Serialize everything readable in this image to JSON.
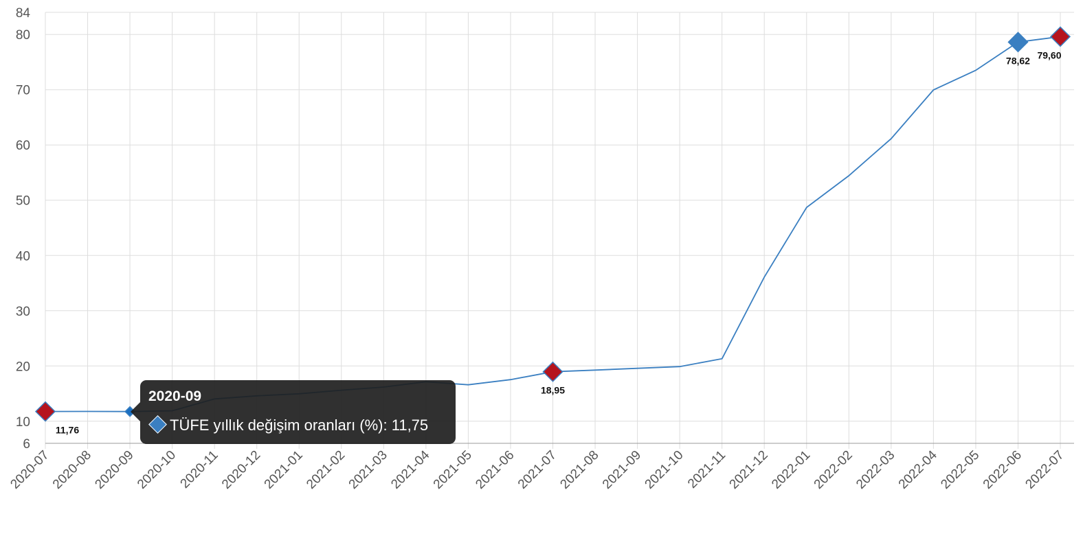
{
  "chart_data": {
    "type": "line",
    "title": "",
    "xlabel": "",
    "ylabel": "",
    "ylim": [
      6,
      84
    ],
    "yticks": [
      6,
      10,
      20,
      30,
      40,
      50,
      60,
      70,
      80,
      84
    ],
    "grid": true,
    "categories": [
      "2020-07",
      "2020-08",
      "2020-09",
      "2020-10",
      "2020-11",
      "2020-12",
      "2021-01",
      "2021-02",
      "2021-03",
      "2021-04",
      "2021-05",
      "2021-06",
      "2021-07",
      "2021-08",
      "2021-09",
      "2021-10",
      "2021-11",
      "2021-12",
      "2022-01",
      "2022-02",
      "2022-03",
      "2022-04",
      "2022-05",
      "2022-06",
      "2022-07"
    ],
    "series": [
      {
        "name": "TÜFE yıllık değişim oranları (%)",
        "color": "#3a7fc1",
        "values": [
          11.76,
          11.77,
          11.75,
          11.89,
          14.03,
          14.6,
          14.97,
          15.61,
          16.19,
          17.14,
          16.59,
          17.53,
          18.95,
          19.25,
          19.58,
          19.89,
          21.31,
          36.08,
          48.69,
          54.44,
          61.14,
          69.97,
          73.5,
          78.62,
          79.6
        ]
      }
    ],
    "highlighted_points": [
      {
        "category": "2020-07",
        "label": "11,76",
        "marker": "diamond",
        "color": "#b5141e"
      },
      {
        "category": "2021-07",
        "label": "18,95",
        "marker": "diamond",
        "color": "#b5141e"
      },
      {
        "category": "2022-06",
        "label": "78,62",
        "marker": "diamond",
        "color": "#3a7fc1"
      },
      {
        "category": "2022-07",
        "label": "79,60",
        "marker": "diamond",
        "color": "#b5141e"
      }
    ],
    "hover_point": {
      "category": "2020-09",
      "color": "#1a6fc1"
    },
    "tooltip": {
      "title": "2020-09",
      "series_label": "TÜFE yıllık değişim oranları (%): 11,75"
    }
  }
}
